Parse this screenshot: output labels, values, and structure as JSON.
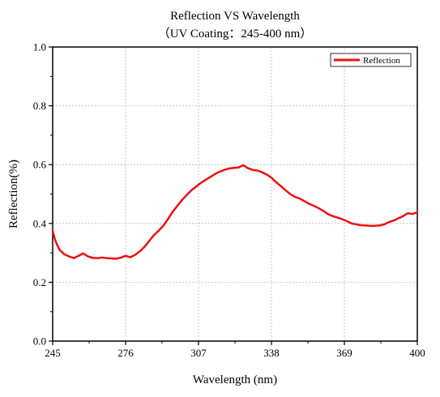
{
  "chart_data": {
    "type": "line",
    "title": "Reflection VS Wavelength",
    "subtitle": "（UV Coating：245-400 nm）",
    "xlabel": "Wavelength (nm)",
    "ylabel": "Reflection(%)",
    "xlim": [
      245,
      400
    ],
    "ylim": [
      0.0,
      1.0
    ],
    "xticks": [
      245,
      276,
      307,
      338,
      369,
      400
    ],
    "xtick_labels": [
      "245",
      "276",
      "307",
      "338",
      "369",
      "400"
    ],
    "yticks": [
      0.0,
      0.2,
      0.4,
      0.6,
      0.8,
      1.0
    ],
    "ytick_labels": [
      "0.0",
      "0.2",
      "0.4",
      "0.6",
      "0.8",
      "1.0"
    ],
    "grid": true,
    "legend_position": "top-right",
    "series": [
      {
        "name": "Reflection",
        "color": "#ee1111",
        "x": [
          245,
          246,
          247,
          248,
          250,
          252,
          254,
          256,
          258,
          260,
          262,
          264,
          266,
          268,
          270,
          272,
          274,
          276,
          278,
          280,
          282,
          284,
          286,
          288,
          290,
          292,
          294,
          296,
          298,
          300,
          302,
          304,
          306,
          308,
          310,
          312,
          314,
          316,
          318,
          320,
          322,
          324,
          326,
          328,
          330,
          332,
          334,
          336,
          338,
          340,
          342,
          344,
          346,
          348,
          350,
          352,
          354,
          356,
          358,
          360,
          362,
          364,
          366,
          368,
          370,
          372,
          374,
          376,
          378,
          380,
          382,
          384,
          386,
          388,
          390,
          392,
          394,
          396,
          398,
          399,
          400
        ],
        "y": [
          0.375,
          0.345,
          0.325,
          0.31,
          0.295,
          0.288,
          0.282,
          0.29,
          0.298,
          0.288,
          0.283,
          0.282,
          0.284,
          0.282,
          0.281,
          0.28,
          0.284,
          0.29,
          0.285,
          0.293,
          0.305,
          0.32,
          0.34,
          0.36,
          0.375,
          0.392,
          0.415,
          0.44,
          0.46,
          0.48,
          0.497,
          0.513,
          0.525,
          0.538,
          0.548,
          0.558,
          0.568,
          0.576,
          0.582,
          0.587,
          0.589,
          0.59,
          0.598,
          0.588,
          0.582,
          0.58,
          0.574,
          0.566,
          0.556,
          0.54,
          0.527,
          0.513,
          0.5,
          0.49,
          0.485,
          0.476,
          0.467,
          0.46,
          0.452,
          0.443,
          0.432,
          0.425,
          0.42,
          0.415,
          0.408,
          0.4,
          0.397,
          0.394,
          0.393,
          0.392,
          0.392,
          0.393,
          0.397,
          0.405,
          0.41,
          0.418,
          0.425,
          0.435,
          0.432,
          0.436,
          0.436
        ]
      }
    ]
  }
}
